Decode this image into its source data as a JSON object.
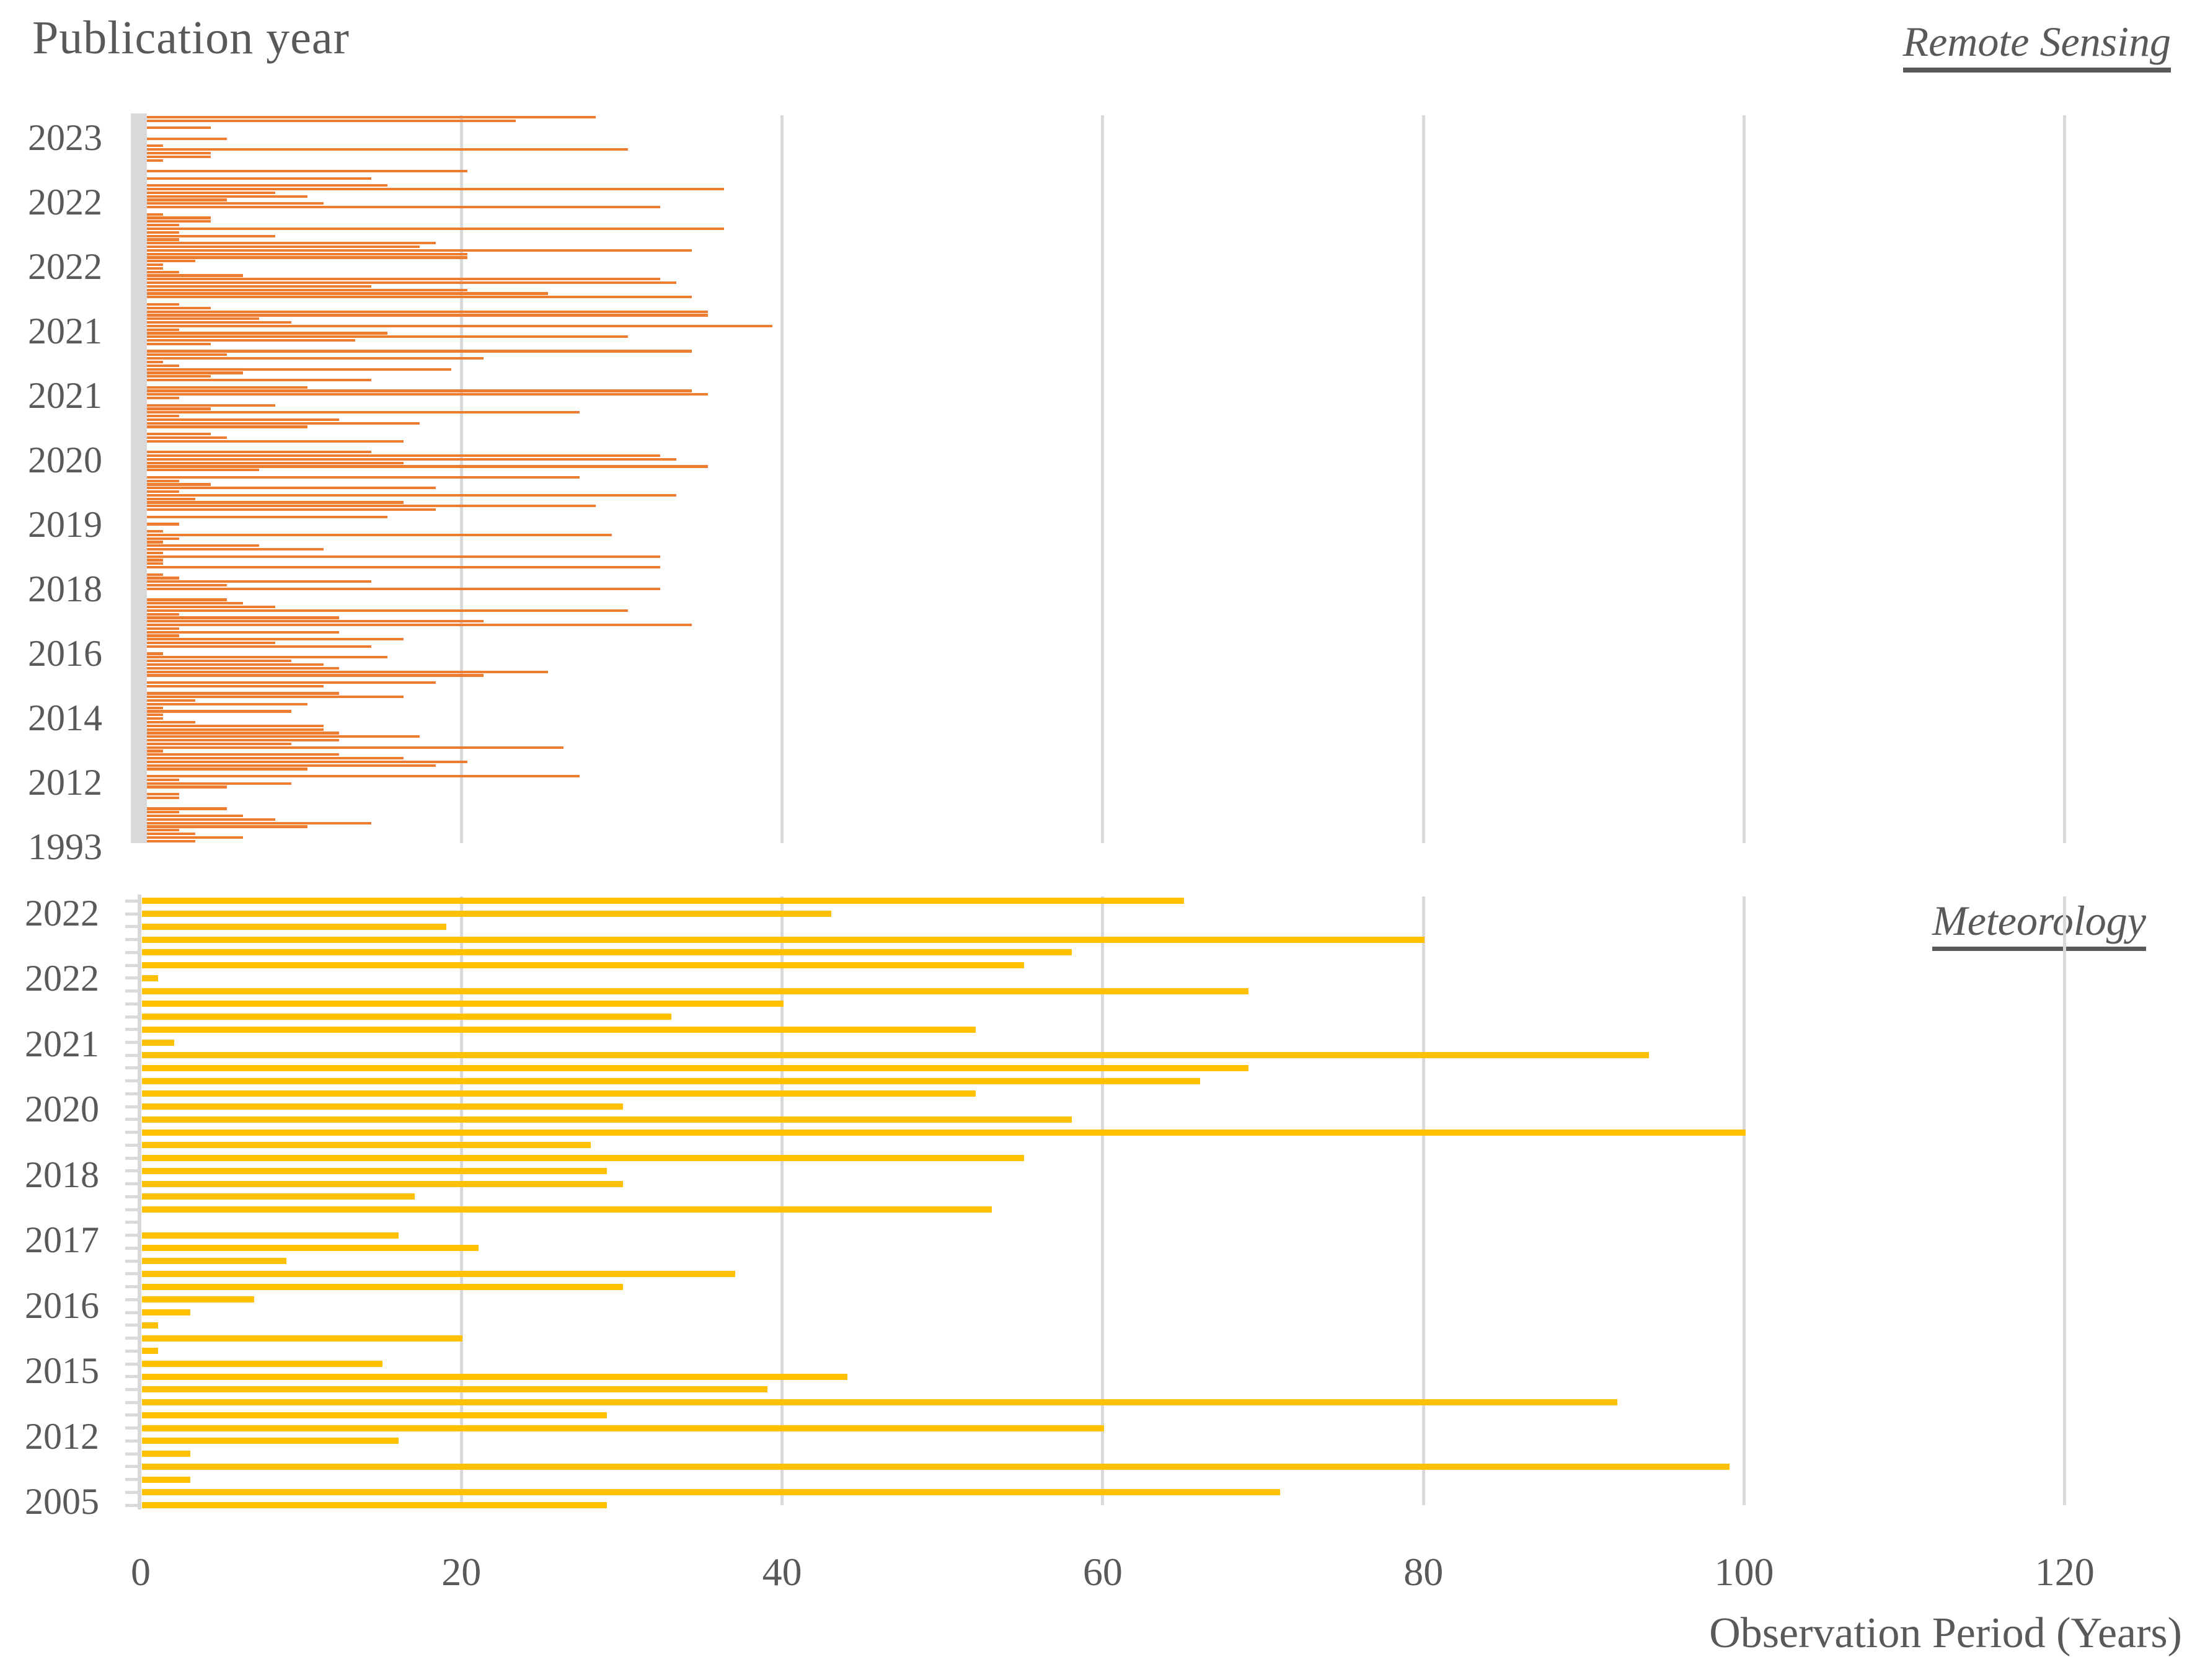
{
  "title": "Publication year",
  "x_axis": {
    "title": "Observation Period (Years)",
    "ticks": [
      0,
      20,
      40,
      60,
      80,
      100,
      120
    ],
    "min": 0,
    "max": 120
  },
  "colors": {
    "remote_sensing_bar": "#ED7D31",
    "meteorology_bar": "#FFC000",
    "gridline": "#D9D9D9",
    "tick_band": "#D9D9D9",
    "text": "#595959"
  },
  "chart_data": [
    {
      "type": "bar",
      "orientation": "horizontal",
      "name": "Remote Sensing",
      "xlabel": "Observation Period (Years)",
      "ylabel": "Publication year",
      "xlim": [
        0,
        120
      ],
      "grid": true,
      "group_labels": [
        "2023",
        "2022",
        "2022",
        "2021",
        "2021",
        "2020",
        "2019",
        "2018",
        "2016",
        "2014",
        "2012",
        "1993"
      ],
      "values_note": "observation period in years per reviewed study; 0 = blank separator row",
      "values": [
        28,
        23,
        0,
        4,
        0,
        0,
        5,
        0,
        1,
        30,
        4,
        4,
        1,
        0,
        0,
        20,
        0,
        14,
        0,
        15,
        36,
        8,
        10,
        5,
        11,
        32,
        0,
        1,
        4,
        4,
        2,
        36,
        2,
        8,
        2,
        18,
        17,
        34,
        20,
        20,
        3,
        1,
        1,
        2,
        6,
        32,
        33,
        14,
        20,
        25,
        34,
        0,
        2,
        4,
        35,
        35,
        7,
        9,
        39,
        2,
        15,
        30,
        13,
        4,
        0,
        34,
        5,
        21,
        1,
        2,
        19,
        6,
        4,
        14,
        0,
        10,
        34,
        35,
        2,
        0,
        8,
        4,
        27,
        2,
        12,
        17,
        10,
        0,
        4,
        5,
        16,
        0,
        0,
        14,
        32,
        33,
        16,
        35,
        7,
        0,
        27,
        2,
        4,
        18,
        2,
        33,
        3,
        16,
        28,
        18,
        0,
        15,
        0,
        2,
        0,
        1,
        29,
        2,
        1,
        7,
        11,
        1,
        32,
        1,
        1,
        32,
        0,
        1,
        2,
        14,
        5,
        32,
        0,
        0,
        5,
        6,
        8,
        30,
        2,
        12,
        21,
        34,
        2,
        12,
        2,
        16,
        8,
        14,
        0,
        1,
        15,
        9,
        11,
        12,
        25,
        21,
        0,
        18,
        11,
        0,
        12,
        16,
        3,
        10,
        1,
        9,
        1,
        1,
        3,
        11,
        11,
        12,
        17,
        12,
        9,
        26,
        1,
        12,
        16,
        20,
        18,
        10,
        0,
        27,
        2,
        9,
        5,
        0,
        2,
        2,
        0,
        0,
        5,
        2,
        6,
        8,
        14,
        10,
        2,
        3,
        6,
        3
      ]
    },
    {
      "type": "bar",
      "orientation": "horizontal",
      "name": "Meteorology",
      "xlabel": "Observation Period (Years)",
      "xlim": [
        0,
        120
      ],
      "grid": true,
      "group_labels": [
        "2022",
        "2022",
        "2021",
        "2020",
        "2018",
        "2017",
        "2016",
        "2015",
        "2012",
        "2005"
      ],
      "values_note": "observation period in years per reviewed study; 0 = blank separator row",
      "values": [
        65,
        43,
        19,
        80,
        58,
        55,
        1,
        69,
        40,
        33,
        52,
        2,
        94,
        69,
        66,
        52,
        30,
        58,
        100,
        28,
        55,
        29,
        30,
        17,
        53,
        0,
        16,
        21,
        9,
        37,
        30,
        7,
        3,
        1,
        20,
        1,
        15,
        44,
        39,
        92,
        29,
        60,
        16,
        3,
        99,
        3,
        71,
        29
      ]
    }
  ]
}
